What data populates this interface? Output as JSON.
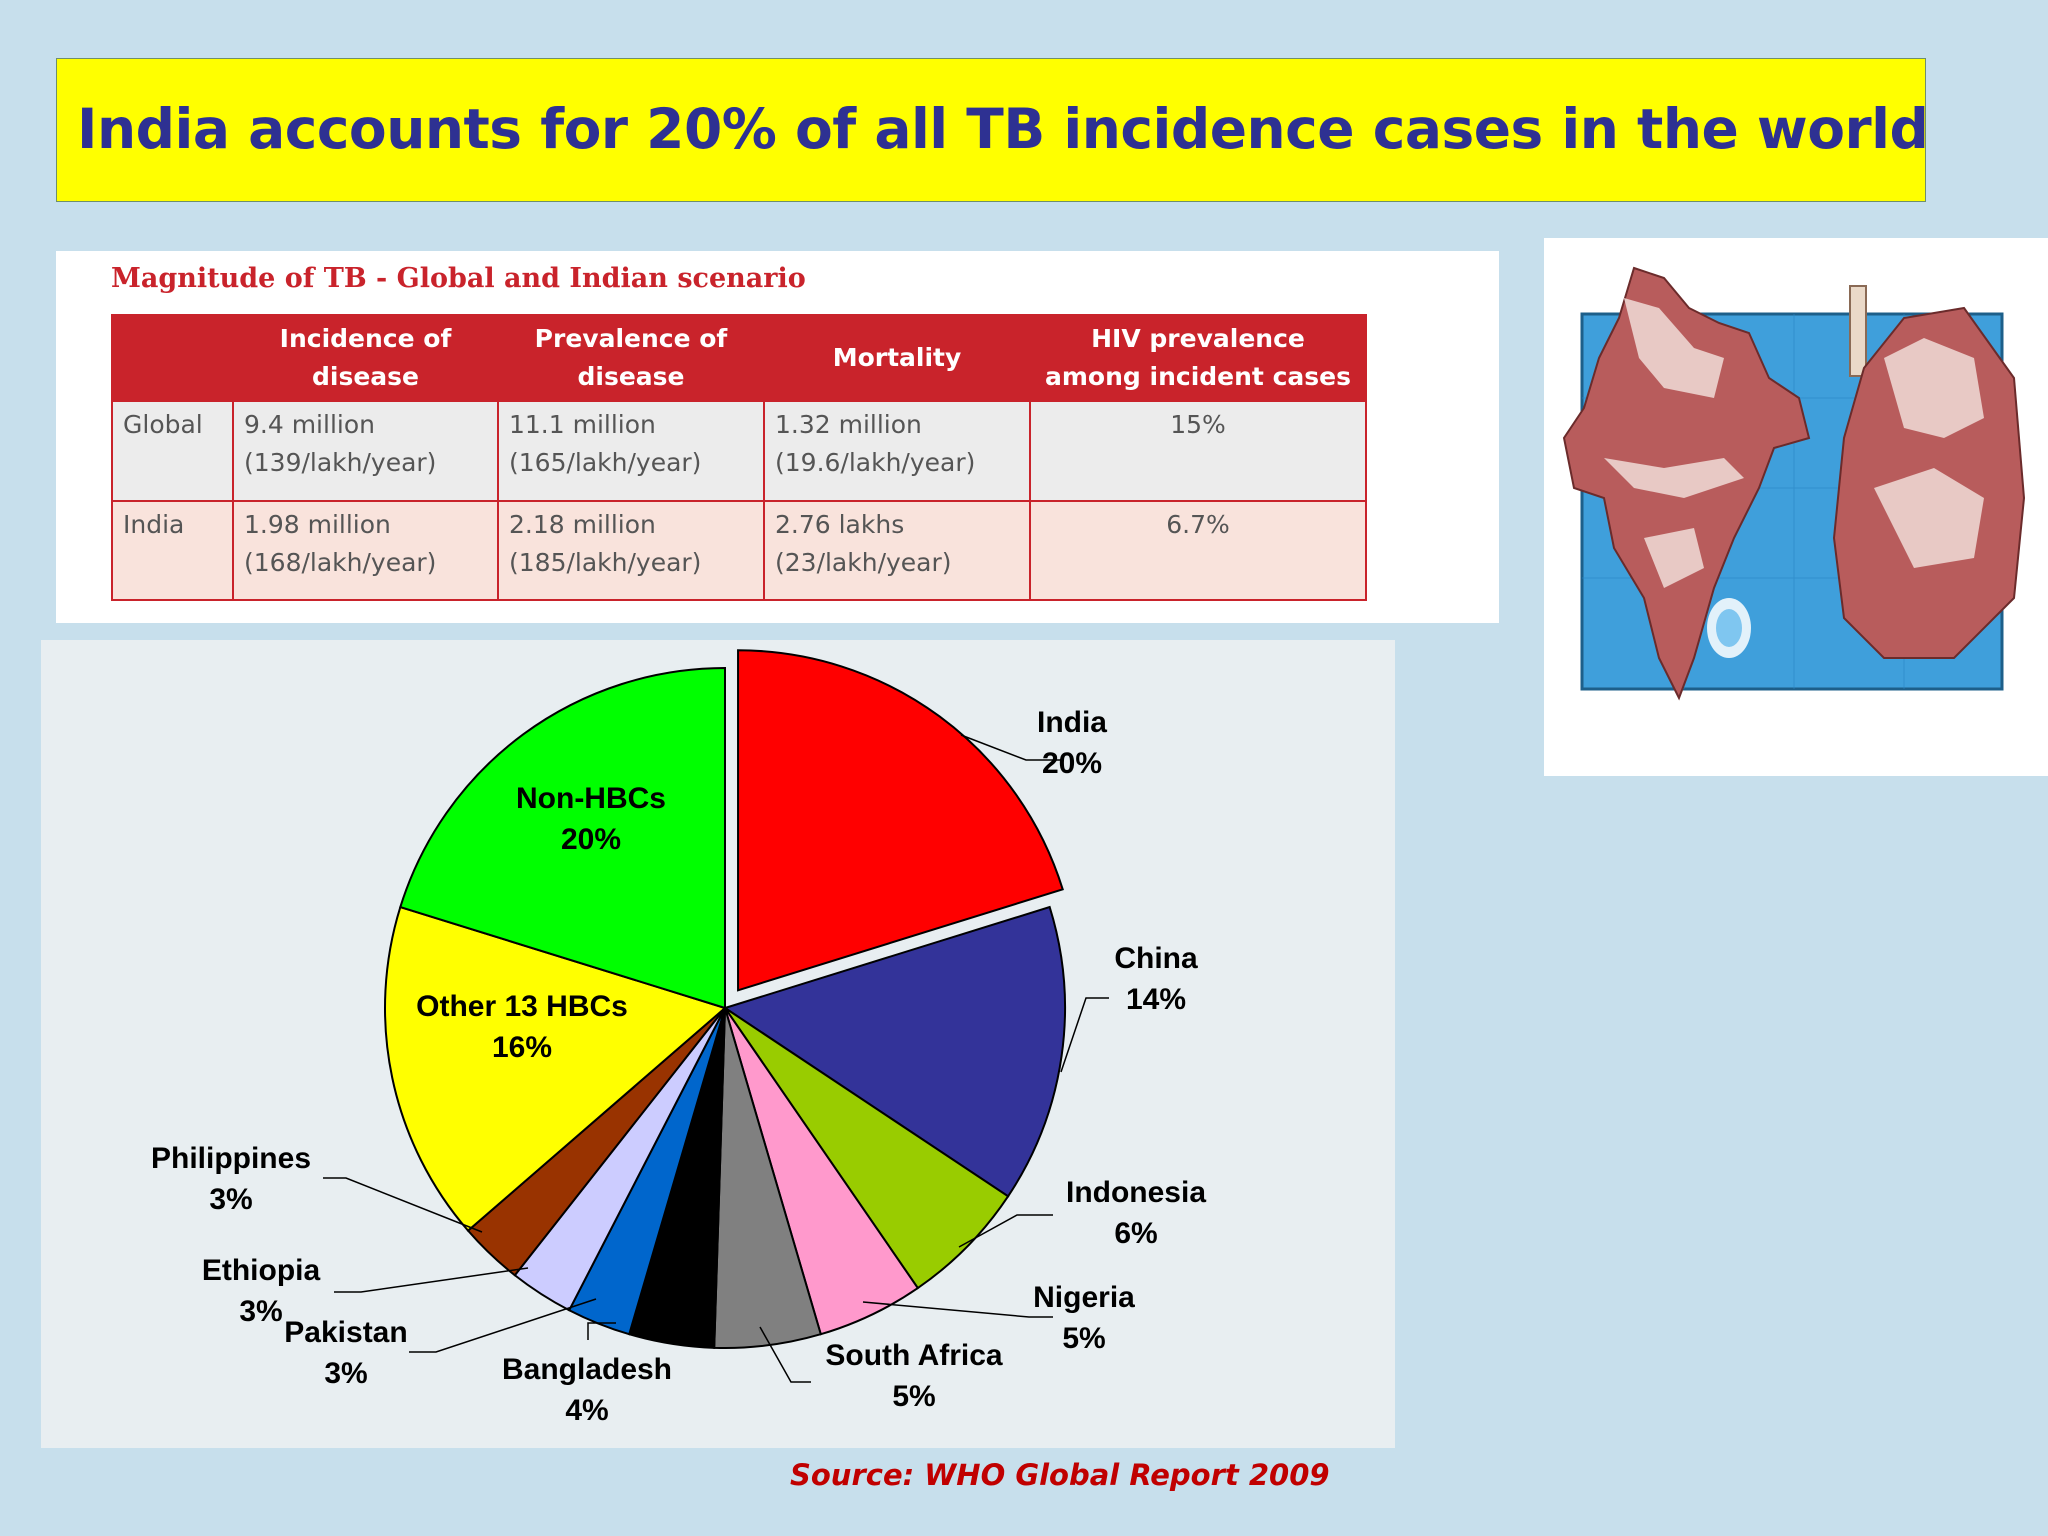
{
  "title": "India accounts for 20% of all TB incidence cases in the world",
  "table": {
    "heading": "Magnitude of TB - Global and Indian scenario",
    "columns": [
      "",
      "Incidence of disease",
      "Prevalence of disease",
      "Mortality",
      "HIV prevalence among incident cases"
    ],
    "rows": [
      {
        "label": "Global",
        "incidence": [
          "9.4 million",
          "(139/lakh/year)"
        ],
        "prevalence": [
          "11.1 million",
          "(165/lakh/year)"
        ],
        "mortality": [
          "1.32 million",
          "(19.6/lakh/year)"
        ],
        "hiv": "15%"
      },
      {
        "label": "India",
        "incidence": [
          "1.98 million",
          "(168/lakh/year)"
        ],
        "prevalence": [
          "2.18 million",
          "(185/lakh/year)"
        ],
        "mortality": [
          "2.76 lakhs",
          "(23/lakh/year)"
        ],
        "hiv": "6.7%"
      }
    ]
  },
  "illustration": {
    "icon": "india-map-lungs-icon",
    "colors": {
      "background": "#3f9fdb",
      "tissue": "#b85c5c"
    }
  },
  "chart_data": {
    "type": "pie",
    "slices": [
      {
        "name": "India",
        "value": 20,
        "label": [
          "India",
          "20%"
        ],
        "color": "#ff0000",
        "exploded": true
      },
      {
        "name": "China",
        "value": 14,
        "label": [
          "China",
          "14%"
        ],
        "color": "#333399"
      },
      {
        "name": "Indonesia",
        "value": 6,
        "label": [
          "Indonesia",
          "6%"
        ],
        "color": "#99cc00"
      },
      {
        "name": "Nigeria",
        "value": 5,
        "label": [
          "Nigeria",
          "5%"
        ],
        "color": "#ff99cc"
      },
      {
        "name": "South Africa",
        "value": 5,
        "label": [
          "South Africa",
          "5%"
        ],
        "color": "#808080"
      },
      {
        "name": "Bangladesh",
        "value": 4,
        "label": [
          "Bangladesh",
          "4%"
        ],
        "color": "#000000"
      },
      {
        "name": "Pakistan",
        "value": 3,
        "label": [
          "Pakistan",
          "3%"
        ],
        "color": "#0066cc"
      },
      {
        "name": "Ethiopia",
        "value": 3,
        "label": [
          "Ethiopia",
          "3%"
        ],
        "color": "#ccccff"
      },
      {
        "name": "Philippines",
        "value": 3,
        "label": [
          "Philippines",
          "3%"
        ],
        "color": "#993300"
      },
      {
        "name": "Other 13 HBCs",
        "value": 16,
        "label": [
          "Other 13 HBCs",
          "16%"
        ],
        "color": "#ffff00"
      },
      {
        "name": "Non-HBCs",
        "value": 20,
        "label": [
          "Non-HBCs",
          "20%"
        ],
        "color": "#00ff00"
      }
    ]
  },
  "source": "Source: WHO Global Report 2009"
}
